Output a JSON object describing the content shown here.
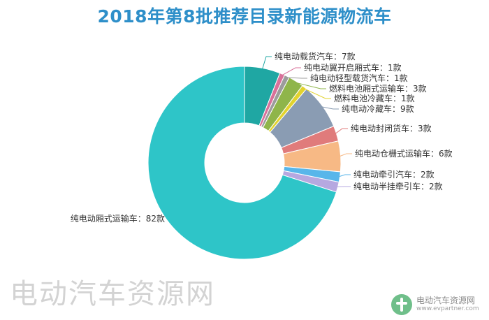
{
  "chart_data": {
    "type": "pie",
    "title": "2018年第8批推荐目录新能源物流车",
    "unit": "款",
    "slices": [
      {
        "label": "纯电动载货汽车",
        "value": 7,
        "color": "#1fa7a3"
      },
      {
        "label": "纯电动翼开启厢式车",
        "value": 1,
        "color": "#d8719a"
      },
      {
        "label": "纯电动轻型载货汽车",
        "value": 1,
        "color": "#9c9c9c"
      },
      {
        "label": "燃料电池厢式运输车",
        "value": 3,
        "color": "#8fb54a"
      },
      {
        "label": "燃料电池冷藏车",
        "value": 1,
        "color": "#e2d32e"
      },
      {
        "label": "纯电动冷藏车",
        "value": 9,
        "color": "#8a9cb3"
      },
      {
        "label": "纯电动封闭货车",
        "value": 3,
        "color": "#e07b7b"
      },
      {
        "label": "纯电动仓栅式运输车",
        "value": 6,
        "color": "#f7b985"
      },
      {
        "label": "纯电动牵引汽车",
        "value": 2,
        "color": "#58b6ea"
      },
      {
        "label": "纯电动半挂牵引车",
        "value": 2,
        "color": "#b6a8e0"
      },
      {
        "label": "纯电动厢式运输车",
        "value": 82,
        "color": "#2ec5c8"
      }
    ]
  },
  "watermark": "电动汽车资源网",
  "brand": {
    "name": "电动汽车资源网",
    "url": "www.evpartner.com",
    "logo_icon": "ev-leaf-icon",
    "logo_color": "#6fbf8a"
  }
}
